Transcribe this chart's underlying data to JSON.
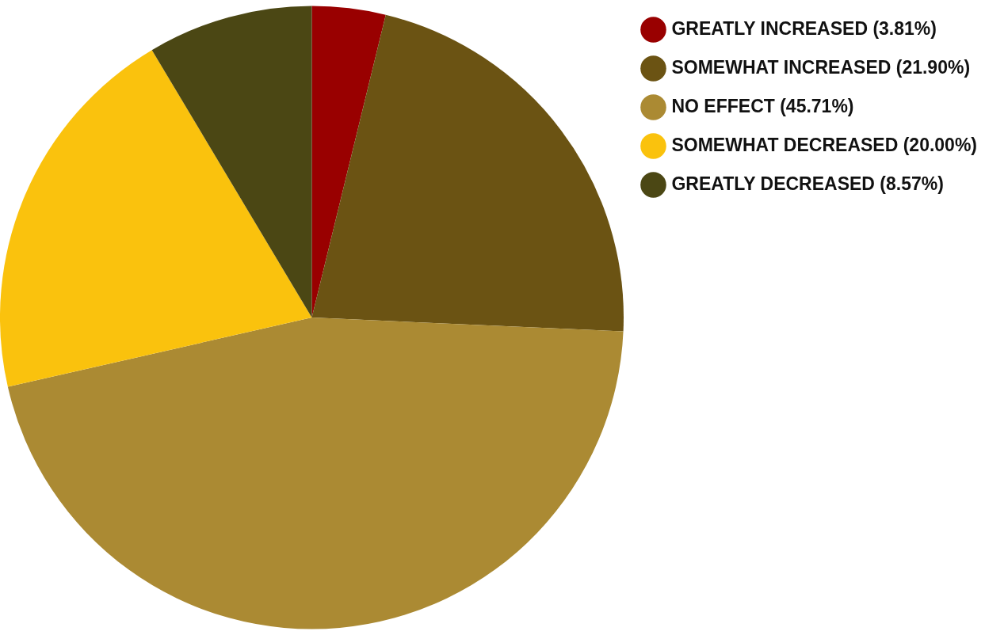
{
  "chart_data": {
    "type": "pie",
    "categories": [
      "GREATLY INCREASED (3.81%)",
      "SOMEWHAT INCREASED (21.90%)",
      "NO EFFECT (45.71%)",
      "SOMEWHAT DECREASED (20.00%)",
      "GREATLY DECREASED (8.57%)"
    ],
    "values": [
      3.81,
      21.9,
      45.71,
      20.0,
      8.57
    ],
    "colors": [
      "#990000",
      "#6b5313",
      "#ab8a33",
      "#fac20d",
      "#4b4714"
    ],
    "legend": "top right"
  }
}
